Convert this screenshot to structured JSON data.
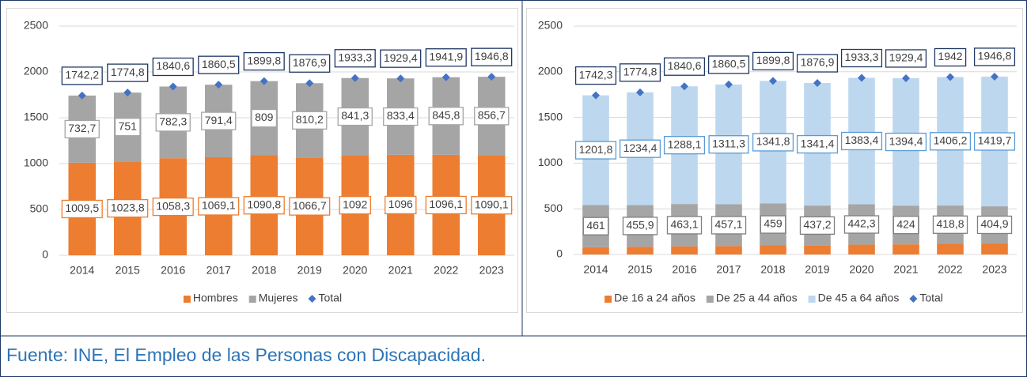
{
  "caption": "Fuente: INE, El Empleo de las Personas con Discapacidad.",
  "chart_data": [
    {
      "type": "bar",
      "stacked": true,
      "categories": [
        "2014",
        "2015",
        "2016",
        "2017",
        "2018",
        "2019",
        "2020",
        "2021",
        "2022",
        "2023"
      ],
      "ylim": [
        0,
        2500
      ],
      "yticks": [
        0,
        500,
        1000,
        1500,
        2000,
        2500
      ],
      "grid": true,
      "legend": "bottom",
      "series": [
        {
          "name": "Hombres",
          "color": "#ed7d31",
          "label_border": "#ed7d31",
          "values": [
            1009.5,
            1023.8,
            1058.3,
            1069.1,
            1090.8,
            1066.7,
            1092,
            1096,
            1096.1,
            1090.1
          ],
          "value_labels": [
            "1009,5",
            "1023,8",
            "1058,3",
            "1069,1",
            "1090,8",
            "1066,7",
            "1092",
            "1096",
            "1096,1",
            "1090,1"
          ]
        },
        {
          "name": "Mujeres",
          "color": "#a5a5a5",
          "label_border": "#a5a5a5",
          "values": [
            732.7,
            751,
            782.3,
            791.4,
            809,
            810.2,
            841.3,
            833.4,
            845.8,
            856.7
          ],
          "value_labels": [
            "732,7",
            "751",
            "782,3",
            "791,4",
            "809",
            "810,2",
            "841,3",
            "833,4",
            "845,8",
            "856,7"
          ]
        },
        {
          "name": "Total",
          "type": "marker",
          "color": "#4472c4",
          "label_border": "#203864",
          "values": [
            1742.2,
            1774.8,
            1840.6,
            1860.5,
            1899.8,
            1876.9,
            1933.3,
            1929.4,
            1941.9,
            1946.8
          ],
          "value_labels": [
            "1742,2",
            "1774,8",
            "1840,6",
            "1860,5",
            "1899,8",
            "1876,9",
            "1933,3",
            "1929,4",
            "1941,9",
            "1946,8"
          ]
        }
      ]
    },
    {
      "type": "bar",
      "stacked": true,
      "categories": [
        "2014",
        "2015",
        "2016",
        "2017",
        "2018",
        "2019",
        "2020",
        "2021",
        "2022",
        "2023"
      ],
      "ylim": [
        0,
        2500
      ],
      "yticks": [
        0,
        500,
        1000,
        1500,
        2000,
        2500
      ],
      "grid": true,
      "legend": "bottom",
      "series": [
        {
          "name": "De 16 a 24 años",
          "color": "#ed7d31",
          "values": [
            79.5,
            84.5,
            89.4,
            92.1,
            99,
            98.3,
            107.6,
            111,
            117,
            122.2
          ]
        },
        {
          "name": "De 25 a 44 años",
          "color": "#a5a5a5",
          "label_border": "#7f7f7f",
          "values": [
            461,
            455.9,
            463.1,
            457.1,
            459,
            437.2,
            442.3,
            424,
            418.8,
            404.9
          ],
          "value_labels": [
            "461",
            "455,9",
            "463,1",
            "457,1",
            "459",
            "437,2",
            "442,3",
            "424",
            "418,8",
            "404,9"
          ]
        },
        {
          "name": "De 45 a 64 años",
          "color": "#bdd7ee",
          "label_border": "#5b9bd5",
          "values": [
            1201.8,
            1234.4,
            1288.1,
            1311.3,
            1341.8,
            1341.4,
            1383.4,
            1394.4,
            1406.2,
            1419.7
          ],
          "value_labels": [
            "1201,8",
            "1234,4",
            "1288,1",
            "1311,3",
            "1341,8",
            "1341,4",
            "1383,4",
            "1394,4",
            "1406,2",
            "1419,7"
          ]
        },
        {
          "name": "Total",
          "type": "marker",
          "color": "#4472c4",
          "label_border": "#203864",
          "values": [
            1742.3,
            1774.8,
            1840.6,
            1860.5,
            1899.8,
            1876.9,
            1933.3,
            1929.4,
            1942,
            1946.8
          ],
          "value_labels": [
            "1742,3",
            "1774,8",
            "1840,6",
            "1860,5",
            "1899,8",
            "1876,9",
            "1933,3",
            "1929,4",
            "1942",
            "1946,8"
          ]
        }
      ]
    }
  ]
}
